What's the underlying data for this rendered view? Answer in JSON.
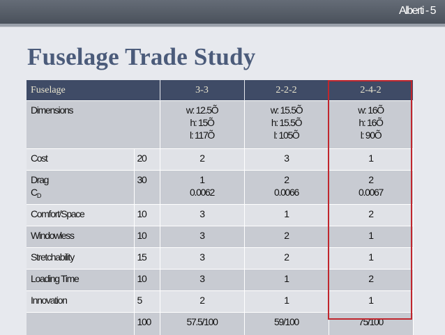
{
  "header": {
    "text": "Alberti  - 5"
  },
  "title": "Fuselage Trade Study",
  "table": {
    "columns": [
      "Fuselage",
      "3-3",
      "2-2-2",
      "2-4-2"
    ],
    "dimensions": {
      "label": "Dimensions",
      "c33": [
        "w: 12.5Õ",
        "h: 15Õ",
        "l: 117Õ"
      ],
      "c222": [
        "w: 15.5Õ",
        "h: 15.5Õ",
        "l: 105Õ"
      ],
      "c242": [
        "w: 16Õ",
        "h: 16Õ",
        "l: 90Õ"
      ]
    },
    "cost": {
      "label": "Cost",
      "weight": "20",
      "c33": "2",
      "c222": "3",
      "c242": "1"
    },
    "drag": {
      "label": "Drag",
      "cd_label": "C",
      "cd_sub": "D",
      "weight": "30",
      "c33": [
        "1",
        "0.0062"
      ],
      "c222": [
        "2",
        "0.0066"
      ],
      "c242": [
        "2",
        "0.0067"
      ]
    },
    "comfort": {
      "label": "Comfort/Space",
      "weight": "10",
      "c33": "3",
      "c222": "1",
      "c242": "2"
    },
    "windowless": {
      "label": "Windowless",
      "weight": "10",
      "c33": "3",
      "c222": "2",
      "c242": "1"
    },
    "stretch": {
      "label": "Stretchability",
      "weight": "15",
      "c33": "3",
      "c222": "2",
      "c242": "1"
    },
    "loading": {
      "label": "Loading Time",
      "weight": "10",
      "c33": "3",
      "c222": "1",
      "c242": "2"
    },
    "innovation": {
      "label": "Innovation",
      "weight": "5",
      "c33": "2",
      "c222": "1",
      "c242": "1"
    },
    "total": {
      "label": "",
      "weight": "100",
      "c33": "57.5/100",
      "c222": "59/100",
      "c242": "75/100"
    }
  },
  "colors": {
    "header_bar": "#4a515b",
    "title": "#4b5b7a",
    "table_header": "#3f4b66",
    "row_dark": "#c8cbd2",
    "row_light": "#e0e2e7",
    "highlight": "#c0262d"
  }
}
